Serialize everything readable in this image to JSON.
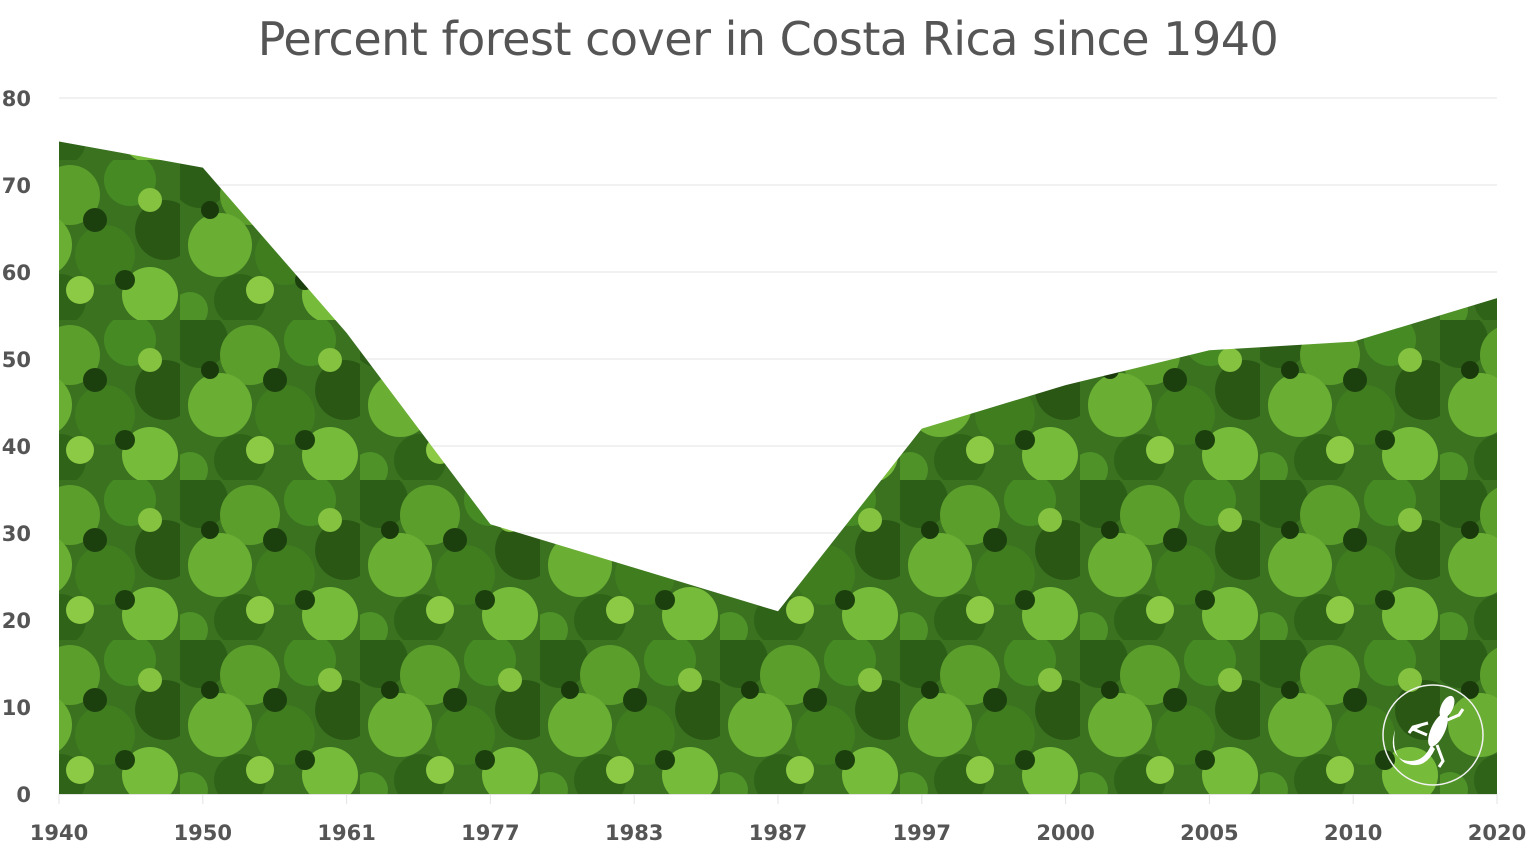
{
  "chart_data": {
    "type": "area",
    "title": "Percent forest cover in Costa Rica since 1940",
    "xlabel": "",
    "ylabel": "",
    "categories": [
      "1940",
      "1950",
      "1961",
      "1977",
      "1983",
      "1987",
      "1997",
      "2000",
      "2005",
      "2010",
      "2020"
    ],
    "values": [
      75,
      72,
      53,
      31,
      26,
      21,
      42,
      47,
      51,
      52,
      57
    ],
    "ylim": [
      0,
      80
    ],
    "yticks": [
      "0",
      "10",
      "20",
      "30",
      "40",
      "50",
      "60",
      "70",
      "80"
    ],
    "grid": true,
    "legend": "none",
    "fill": "aerial rainforest canopy photo texture"
  },
  "colors": {
    "title": "#555555",
    "tick_labels": "#555555",
    "grid": "#e3e3e3",
    "canopy_dark": "#1f4a12",
    "canopy_mid": "#3d7a1f",
    "canopy_light": "#7dbb38"
  },
  "logo": {
    "icon": "gecko-icon"
  }
}
